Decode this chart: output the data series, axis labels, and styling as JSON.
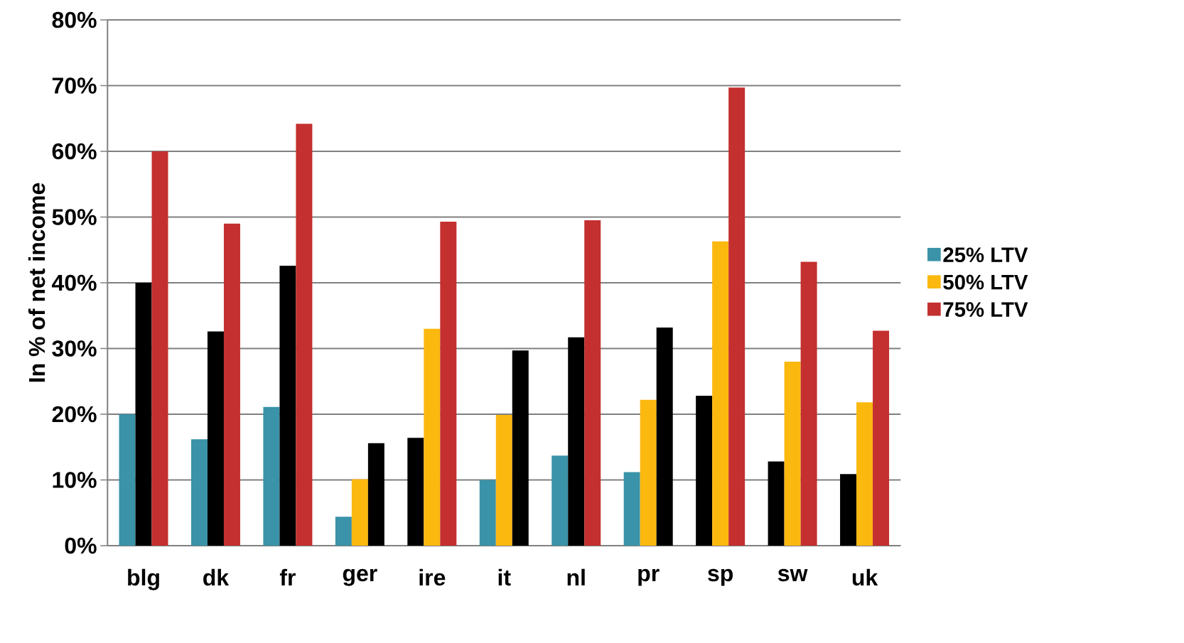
{
  "chart_data": {
    "type": "bar",
    "ylabel": "In % of net income",
    "categories": [
      "blg",
      "dk",
      "fr",
      "ger",
      "ire",
      "it",
      "nl",
      "pr",
      "sp",
      "sw",
      "uk"
    ],
    "series": [
      {
        "name": "25% LTV",
        "color": "#3a93a8",
        "values": [
          20,
          16.2,
          21.1,
          4.4,
          16.4,
          10,
          13.7,
          11.2,
          22.8,
          12.8,
          10.9
        ],
        "colors": [
          "#3a93a8",
          "#3a93a8",
          "#3a93a8",
          "#3a93a8",
          "#000000",
          "#3a93a8",
          "#3a93a8",
          "#3a93a8",
          "#000000",
          "#000000",
          "#000000"
        ]
      },
      {
        "name": "50% LTV",
        "color": "#fbb80f",
        "values": [
          40,
          32.6,
          42.6,
          10.1,
          33,
          19.9,
          31.7,
          22.2,
          46.3,
          28,
          21.8
        ],
        "colors": [
          "#000000",
          "#000000",
          "#000000",
          "#fbb80f",
          "#fbb80f",
          "#fbb80f",
          "#000000",
          "#fbb80f",
          "#fbb80f",
          "#fbb80f",
          "#fbb80f"
        ]
      },
      {
        "name": "75% LTV",
        "color": "#c4302f",
        "values": [
          60,
          49,
          64.2,
          15.6,
          49.3,
          29.7,
          49.5,
          33.2,
          69.7,
          43.2,
          32.7
        ],
        "colors": [
          "#c4302f",
          "#c4302f",
          "#c4302f",
          "#000000",
          "#c4302f",
          "#000000",
          "#c4302f",
          "#000000",
          "#c4302f",
          "#c4302f",
          "#c4302f"
        ]
      }
    ],
    "ylim": [
      0,
      80
    ],
    "yticks": [
      {
        "value": 0,
        "label": "0%"
      },
      {
        "value": 10,
        "label": "10%"
      },
      {
        "value": 20,
        "label": "20%"
      },
      {
        "value": 30,
        "label": "30%"
      },
      {
        "value": 40,
        "label": "40%"
      },
      {
        "value": 50,
        "label": "50%"
      },
      {
        "value": 60,
        "label": "60%"
      },
      {
        "value": 70,
        "label": "70%"
      },
      {
        "value": 80,
        "label": "80%"
      }
    ],
    "grid": "y",
    "legend": "right"
  }
}
